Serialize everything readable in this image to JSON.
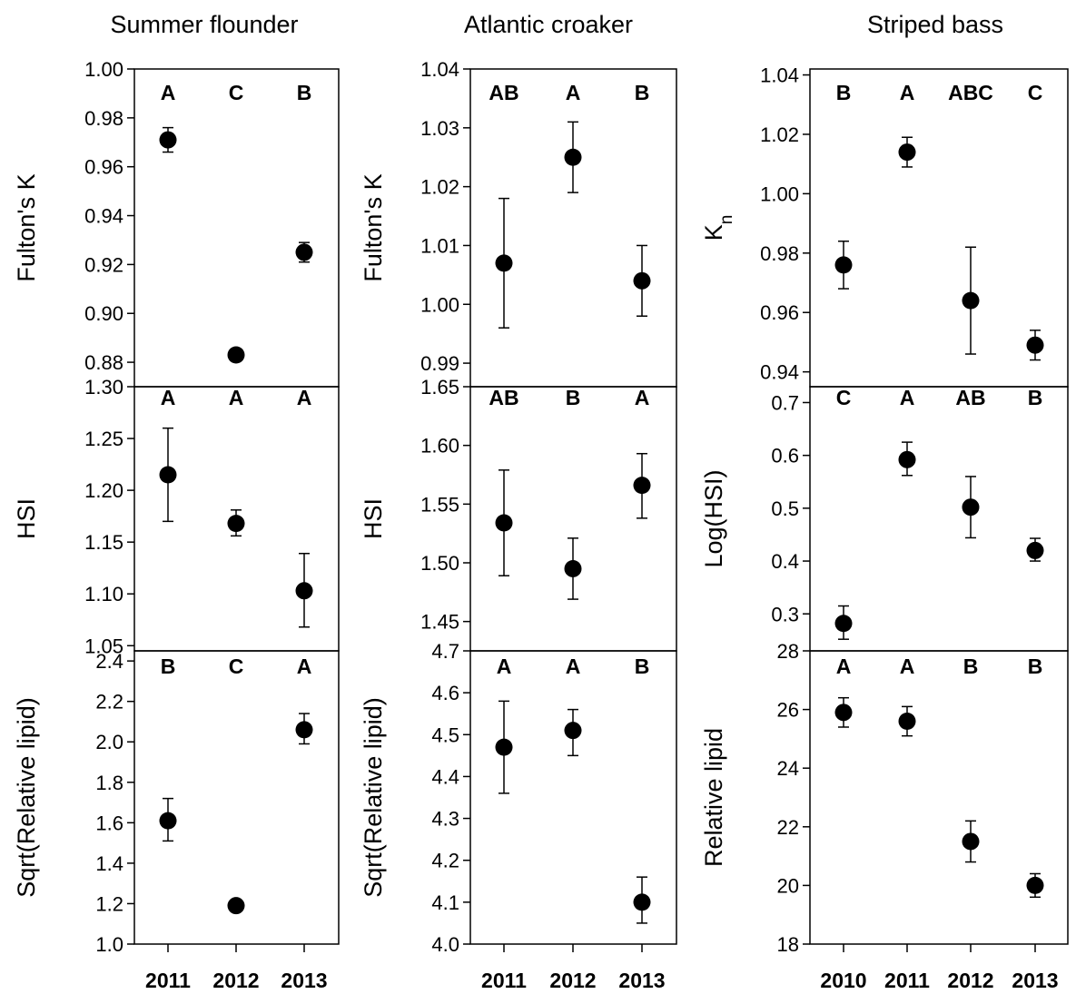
{
  "columns": [
    {
      "title": "Summer flounder",
      "years": [
        "2011",
        "2012",
        "2013"
      ]
    },
    {
      "title": "Atlantic croaker",
      "years": [
        "2011",
        "2012",
        "2013"
      ]
    },
    {
      "title": "Striped bass",
      "years": [
        "2010",
        "2011",
        "2012",
        "2013"
      ]
    }
  ],
  "chart_data": [
    {
      "type": "scatter",
      "column": 0,
      "row": 0,
      "ylabel": "Fulton's K",
      "ylim": [
        0.87,
        1.0
      ],
      "yticks": [
        0.88,
        0.9,
        0.92,
        0.94,
        0.96,
        0.98,
        1.0
      ],
      "tick_decimals": 2,
      "x": [
        "2011",
        "2012",
        "2013"
      ],
      "values": [
        0.971,
        0.883,
        0.925
      ],
      "err_low": [
        0.966,
        0.883,
        0.921
      ],
      "err_high": [
        0.976,
        0.883,
        0.929
      ],
      "group_labels": [
        "A",
        "C",
        "B"
      ]
    },
    {
      "type": "scatter",
      "column": 0,
      "row": 1,
      "ylabel": "HSI",
      "ylim": [
        1.045,
        1.3
      ],
      "yticks": [
        1.05,
        1.1,
        1.15,
        1.2,
        1.25,
        1.3
      ],
      "tick_decimals": 2,
      "x": [
        "2011",
        "2012",
        "2013"
      ],
      "values": [
        1.215,
        1.168,
        1.103
      ],
      "err_low": [
        1.17,
        1.156,
        1.068
      ],
      "err_high": [
        1.26,
        1.181,
        1.139
      ],
      "group_labels": [
        "A",
        "A",
        "A"
      ]
    },
    {
      "type": "scatter",
      "column": 0,
      "row": 2,
      "ylabel": "Sqrt(Relative  lipid)",
      "ylim": [
        1.0,
        2.45
      ],
      "yticks": [
        1.0,
        1.2,
        1.4,
        1.6,
        1.8,
        2.0,
        2.2,
        2.4
      ],
      "tick_decimals": 1,
      "x": [
        "2011",
        "2012",
        "2013"
      ],
      "values": [
        1.61,
        1.19,
        2.06
      ],
      "err_low": [
        1.51,
        1.19,
        1.99
      ],
      "err_high": [
        1.72,
        1.19,
        2.14
      ],
      "group_labels": [
        "B",
        "C",
        "A"
      ]
    },
    {
      "type": "scatter",
      "column": 1,
      "row": 0,
      "ylabel": "Fulton's K",
      "ylim": [
        0.986,
        1.04
      ],
      "yticks": [
        0.99,
        1.0,
        1.01,
        1.02,
        1.03,
        1.04
      ],
      "tick_decimals": 2,
      "x": [
        "2011",
        "2012",
        "2013"
      ],
      "values": [
        1.007,
        1.025,
        1.004
      ],
      "err_low": [
        0.996,
        1.019,
        0.998
      ],
      "err_high": [
        1.018,
        1.031,
        1.01
      ],
      "group_labels": [
        "AB",
        "A",
        "B"
      ]
    },
    {
      "type": "scatter",
      "column": 1,
      "row": 1,
      "ylabel": "HSI",
      "ylim": [
        1.425,
        1.65
      ],
      "yticks": [
        1.45,
        1.5,
        1.55,
        1.6,
        1.65
      ],
      "tick_decimals": 2,
      "x": [
        "2011",
        "2012",
        "2013"
      ],
      "values": [
        1.534,
        1.495,
        1.566
      ],
      "err_low": [
        1.489,
        1.469,
        1.538
      ],
      "err_high": [
        1.579,
        1.521,
        1.593
      ],
      "group_labels": [
        "AB",
        "B",
        "A"
      ]
    },
    {
      "type": "scatter",
      "column": 1,
      "row": 2,
      "ylabel": "Sqrt(Relative  lipid)",
      "ylim": [
        4.0,
        4.7
      ],
      "yticks": [
        4.0,
        4.1,
        4.2,
        4.3,
        4.4,
        4.5,
        4.6,
        4.7
      ],
      "tick_decimals": 1,
      "x": [
        "2011",
        "2012",
        "2013"
      ],
      "values": [
        4.47,
        4.51,
        4.1
      ],
      "err_low": [
        4.36,
        4.45,
        4.05
      ],
      "err_high": [
        4.58,
        4.56,
        4.16
      ],
      "group_labels": [
        "A",
        "A",
        "B"
      ]
    },
    {
      "type": "scatter",
      "column": 2,
      "row": 0,
      "ylabel": "K",
      "ylabel_sub": "n",
      "ylim": [
        0.935,
        1.042
      ],
      "yticks": [
        0.94,
        0.96,
        0.98,
        1.0,
        1.02,
        1.04
      ],
      "tick_decimals": 2,
      "x": [
        "2010",
        "2011",
        "2012",
        "2013"
      ],
      "values": [
        0.976,
        1.014,
        0.964,
        0.949
      ],
      "err_low": [
        0.968,
        1.009,
        0.946,
        0.944
      ],
      "err_high": [
        0.984,
        1.019,
        0.982,
        0.954
      ],
      "group_labels": [
        "B",
        "A",
        "ABC",
        "C"
      ]
    },
    {
      "type": "scatter",
      "column": 2,
      "row": 1,
      "ylabel": "Log(HSI)",
      "ylim": [
        0.23,
        0.73
      ],
      "yticks": [
        0.3,
        0.4,
        0.5,
        0.6,
        0.7
      ],
      "tick_decimals": 1,
      "x": [
        "2010",
        "2011",
        "2012",
        "2013"
      ],
      "values": [
        0.282,
        0.592,
        0.502,
        0.42
      ],
      "err_low": [
        0.252,
        0.562,
        0.444,
        0.4
      ],
      "err_high": [
        0.315,
        0.625,
        0.56,
        0.443
      ],
      "group_labels": [
        "C",
        "A",
        "AB",
        "B"
      ]
    },
    {
      "type": "scatter",
      "column": 2,
      "row": 2,
      "ylabel": "Relative  lipid",
      "ylim": [
        18,
        28
      ],
      "yticks": [
        18,
        20,
        22,
        24,
        26,
        28
      ],
      "tick_decimals": 0,
      "x": [
        "2010",
        "2011",
        "2012",
        "2013"
      ],
      "values": [
        25.9,
        25.6,
        21.5,
        20.0
      ],
      "err_low": [
        25.4,
        25.1,
        20.8,
        19.6
      ],
      "err_high": [
        26.4,
        26.1,
        22.2,
        20.4
      ],
      "group_labels": [
        "A",
        "A",
        "B",
        "B"
      ]
    }
  ]
}
